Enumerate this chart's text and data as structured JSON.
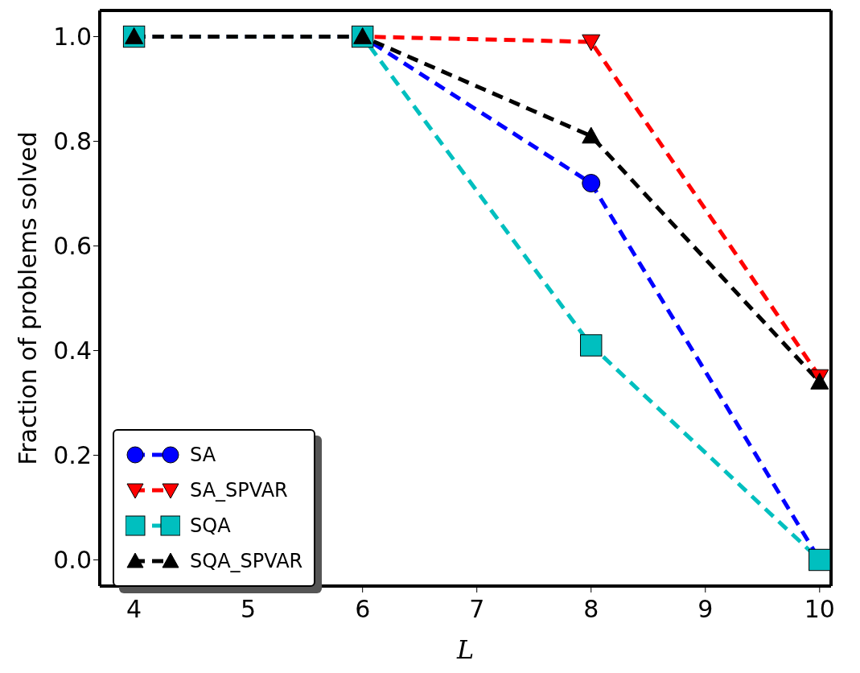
{
  "chart_data": {
    "type": "line",
    "xlabel": "L",
    "ylabel": "Fraction of problems solved",
    "x": [
      4,
      6,
      8,
      10
    ],
    "xlim": [
      3.7,
      10.1
    ],
    "xticks": [
      4,
      5,
      6,
      7,
      8,
      9,
      10
    ],
    "ylim": [
      -0.05,
      1.05
    ],
    "yticks": [
      {
        "value": 0,
        "label": "0.0"
      },
      {
        "value": 0.2,
        "label": "0.2"
      },
      {
        "value": 0.4,
        "label": "0.4"
      },
      {
        "value": 0.6,
        "label": "0.6"
      },
      {
        "value": 0.8,
        "label": "0.8"
      },
      {
        "value": 1,
        "label": "1.0"
      }
    ],
    "grid": false,
    "legend": "bottom left",
    "line_style": "dashed",
    "series": [
      {
        "name": "SA",
        "color": "#0000ff",
        "marker": "circle",
        "values": [
          1,
          1,
          0.72,
          0
        ]
      },
      {
        "name": "SA_SPVAR",
        "color": "#ff0000",
        "marker": "triangle-down",
        "values": [
          1,
          1,
          0.99,
          0.35
        ]
      },
      {
        "name": "SQA",
        "color": "#00bfbf",
        "marker": "square",
        "values": [
          1,
          1,
          0.41,
          0
        ]
      },
      {
        "name": "SQA_SPVAR",
        "color": "#000000",
        "marker": "triangle",
        "values": [
          1,
          1,
          0.81,
          0.34
        ]
      }
    ]
  }
}
